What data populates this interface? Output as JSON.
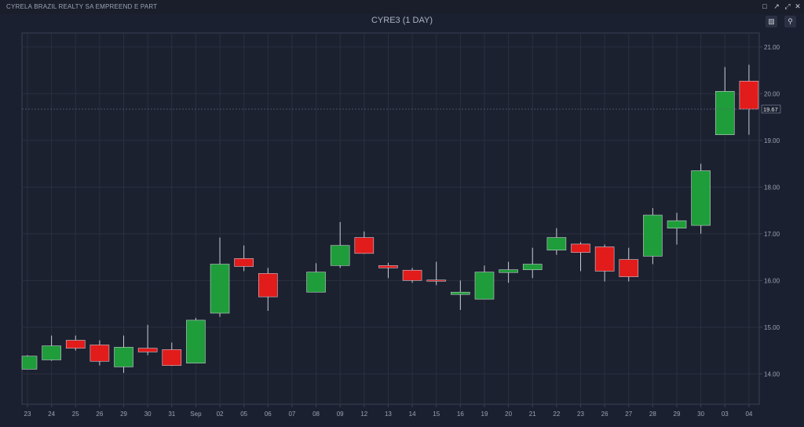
{
  "window": {
    "title": "CYRELA BRAZIL REALTY SA EMPREEND E PART",
    "icons": [
      "restore-icon",
      "popout-icon",
      "expand-icon",
      "close-icon"
    ]
  },
  "toolbar": {
    "lock_icon": "lock-icon",
    "zoom_icon": "zoom-icon"
  },
  "chart_data": {
    "type": "candlestick",
    "title": "CYRE3 (1 DAY)",
    "ylim": [
      13.35,
      21.3
    ],
    "yticks": [
      "14.00",
      "15.00",
      "16.00",
      "17.00",
      "18.00",
      "19.00",
      "20.00",
      "21.00"
    ],
    "last_price": "19.67",
    "grid": true,
    "colors": {
      "up": "#1e9d3a",
      "down": "#e21b1b",
      "background": "#1b2030"
    },
    "categories": [
      "23",
      "24",
      "25",
      "26",
      "29",
      "30",
      "31",
      "Sep",
      "02",
      "05",
      "06",
      "07",
      "08",
      "09",
      "12",
      "13",
      "14",
      "15",
      "16",
      "19",
      "20",
      "21",
      "22",
      "23",
      "26",
      "27",
      "28",
      "29",
      "30",
      "03",
      "04"
    ],
    "candles": [
      {
        "x": "23",
        "open": 14.1,
        "high": 14.4,
        "low": 14.1,
        "close": 14.38
      },
      {
        "x": "24",
        "open": 14.3,
        "high": 14.82,
        "low": 14.28,
        "close": 14.6
      },
      {
        "x": "25",
        "open": 14.72,
        "high": 14.82,
        "low": 14.5,
        "close": 14.55
      },
      {
        "x": "26",
        "open": 14.62,
        "high": 14.72,
        "low": 14.18,
        "close": 14.27
      },
      {
        "x": "29",
        "open": 14.15,
        "high": 14.82,
        "low": 14.02,
        "close": 14.57
      },
      {
        "x": "30",
        "open": 14.55,
        "high": 15.05,
        "low": 14.4,
        "close": 14.47
      },
      {
        "x": "31",
        "open": 14.52,
        "high": 14.67,
        "low": 14.17,
        "close": 14.18
      },
      {
        "x": "Sep",
        "open": 14.23,
        "high": 15.2,
        "low": 14.23,
        "close": 15.15
      },
      {
        "x": "02",
        "open": 15.3,
        "high": 16.92,
        "low": 15.22,
        "close": 16.35
      },
      {
        "x": "05",
        "open": 16.47,
        "high": 16.75,
        "low": 16.2,
        "close": 16.3
      },
      {
        "x": "06",
        "open": 16.15,
        "high": 16.27,
        "low": 15.35,
        "close": 15.65
      },
      {
        "x": "07",
        "open": null,
        "high": null,
        "low": null,
        "close": null
      },
      {
        "x": "08",
        "open": 15.75,
        "high": 16.37,
        "low": 15.75,
        "close": 16.18
      },
      {
        "x": "09",
        "open": 16.32,
        "high": 17.25,
        "low": 16.27,
        "close": 16.75
      },
      {
        "x": "12",
        "open": 16.92,
        "high": 17.05,
        "low": 16.57,
        "close": 16.58
      },
      {
        "x": "13",
        "open": 16.32,
        "high": 16.38,
        "low": 16.05,
        "close": 16.27
      },
      {
        "x": "14",
        "open": 16.22,
        "high": 16.27,
        "low": 15.95,
        "close": 16.0
      },
      {
        "x": "15",
        "open": 16.01,
        "high": 16.4,
        "low": 15.9,
        "close": 15.99
      },
      {
        "x": "16",
        "open": 15.7,
        "high": 16.0,
        "low": 15.37,
        "close": 15.75
      },
      {
        "x": "19",
        "open": 15.6,
        "high": 16.32,
        "low": 15.6,
        "close": 16.18
      },
      {
        "x": "20",
        "open": 16.17,
        "high": 16.4,
        "low": 15.95,
        "close": 16.23
      },
      {
        "x": "21",
        "open": 16.23,
        "high": 16.7,
        "low": 16.05,
        "close": 16.35
      },
      {
        "x": "22",
        "open": 16.65,
        "high": 17.12,
        "low": 16.55,
        "close": 16.92
      },
      {
        "x": "23",
        "open": 16.78,
        "high": 16.82,
        "low": 16.2,
        "close": 16.6
      },
      {
        "x": "26",
        "open": 16.72,
        "high": 16.77,
        "low": 15.98,
        "close": 16.2
      },
      {
        "x": "27",
        "open": 16.45,
        "high": 16.7,
        "low": 15.98,
        "close": 16.08
      },
      {
        "x": "28",
        "open": 16.52,
        "high": 17.55,
        "low": 16.35,
        "close": 17.4
      },
      {
        "x": "29",
        "open": 17.12,
        "high": 17.45,
        "low": 16.77,
        "close": 17.28
      },
      {
        "x": "30",
        "open": 17.18,
        "high": 18.5,
        "low": 17.0,
        "close": 18.35
      },
      {
        "x": "03",
        "open": 19.12,
        "high": 20.57,
        "low": 19.12,
        "close": 20.05
      },
      {
        "x": "04",
        "open": 20.27,
        "high": 20.62,
        "low": 19.12,
        "close": 19.67
      }
    ]
  }
}
